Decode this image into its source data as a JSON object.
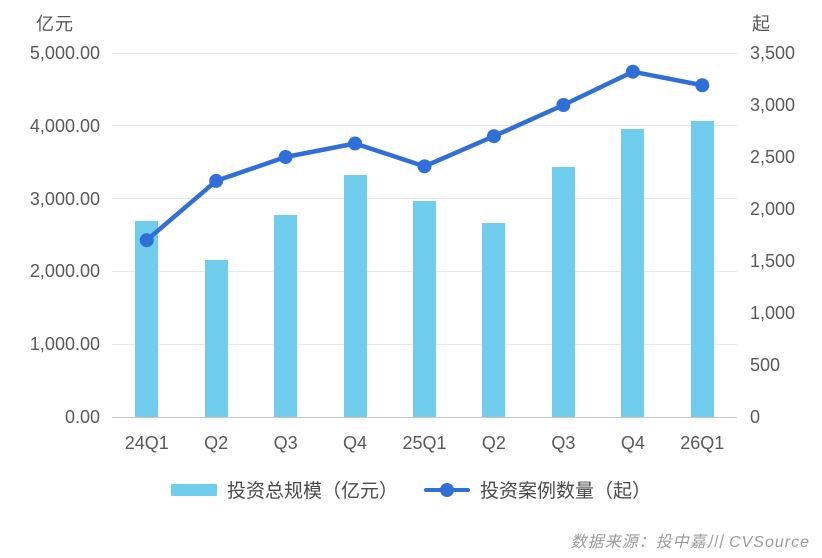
{
  "chart_data": {
    "type": "combo",
    "categories": [
      "24Q1",
      "Q2",
      "Q3",
      "Q4",
      "25Q1",
      "Q2",
      "Q3",
      "Q4",
      "26Q1"
    ],
    "series": [
      {
        "name": "投资总规模（亿元）",
        "type": "bar",
        "axis": "left",
        "color": "#70cdee",
        "values": [
          2690,
          2160,
          2780,
          3320,
          2970,
          2660,
          3440,
          3960,
          4060
        ]
      },
      {
        "name": "投资案例数量（起）",
        "type": "line",
        "axis": "right",
        "color": "#306fd8",
        "values": [
          1700,
          2270,
          2500,
          2630,
          2410,
          2700,
          3000,
          3320,
          3190
        ]
      }
    ],
    "left_axis": {
      "unit": "亿元",
      "max": 5000,
      "tick_values": [
        0,
        1000,
        2000,
        3000,
        4000,
        5000
      ],
      "tick_labels": [
        "0.00",
        "1,000.00",
        "2,000.00",
        "3,000.00",
        "4,000.00",
        "5,000.00"
      ]
    },
    "right_axis": {
      "unit": "起",
      "max": 3500,
      "tick_values": [
        0,
        500,
        1000,
        1500,
        2000,
        2500,
        3000,
        3500
      ],
      "tick_labels": [
        "0",
        "500",
        "1,000",
        "1,500",
        "2,000",
        "2,500",
        "3,000",
        "3,500"
      ]
    },
    "grid": "horizontal",
    "legend_position": "bottom"
  },
  "footer": {
    "source": "数据来源：投中嘉川 CVSource"
  }
}
